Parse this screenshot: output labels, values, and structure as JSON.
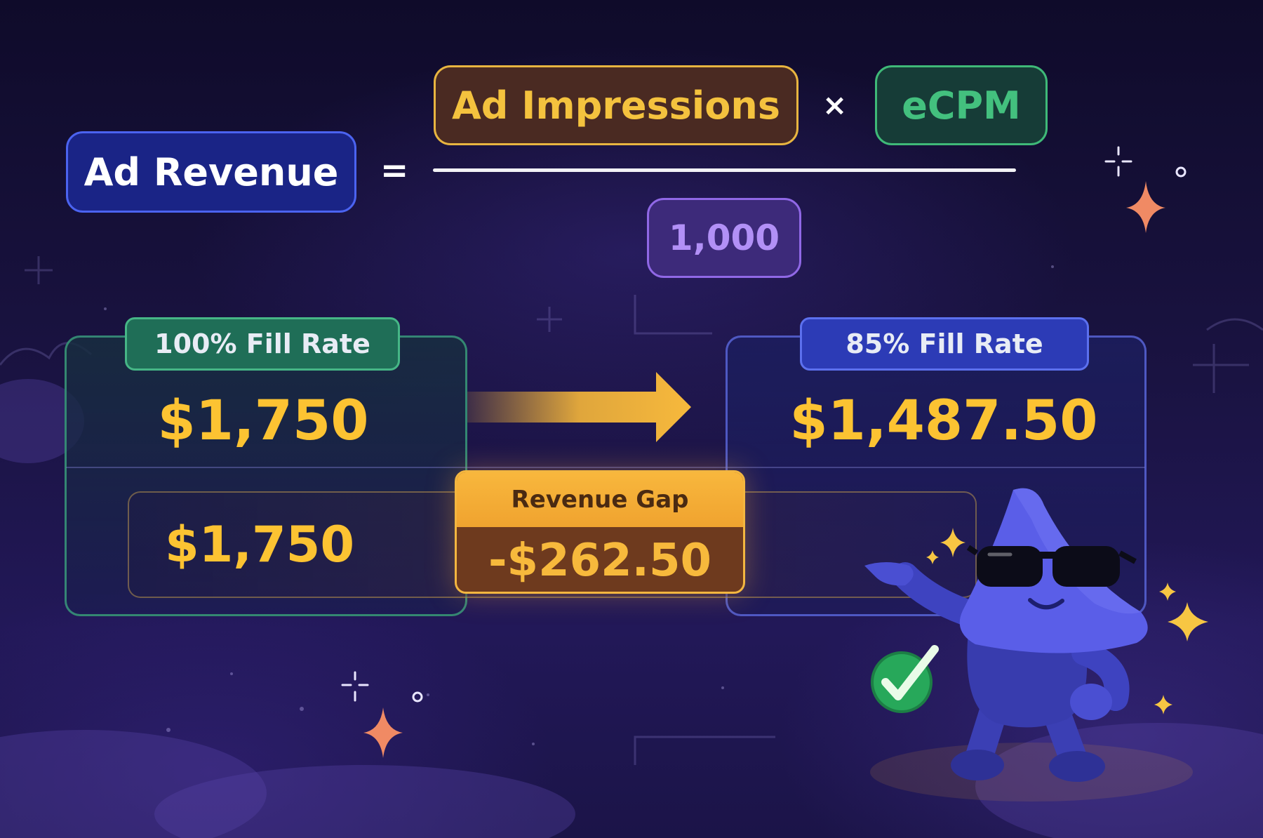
{
  "formula": {
    "result": "Ad Revenue",
    "equals": "=",
    "numerator_left": "Ad Impressions",
    "times": "×",
    "numerator_right": "eCPM",
    "denominator": "1,000"
  },
  "comparison": {
    "left": {
      "badge": "100% Fill Rate",
      "value": "$1,750",
      "color": "#46b686"
    },
    "right": {
      "badge": "85% Fill Rate",
      "value": "$1,487.50",
      "color": "#5c70ee"
    },
    "baseline_value": "$1,750",
    "gap": {
      "label": "Revenue Gap",
      "value": "-$262.50",
      "color": "#f3b640"
    }
  },
  "colors": {
    "revenue_value": "#fcc332",
    "background": "#1a1342",
    "mascot": "#5a5ee8"
  },
  "icons": [
    "arrow-right-icon",
    "check-circle-icon",
    "sparkle-icon",
    "sunglasses-mascot"
  ]
}
